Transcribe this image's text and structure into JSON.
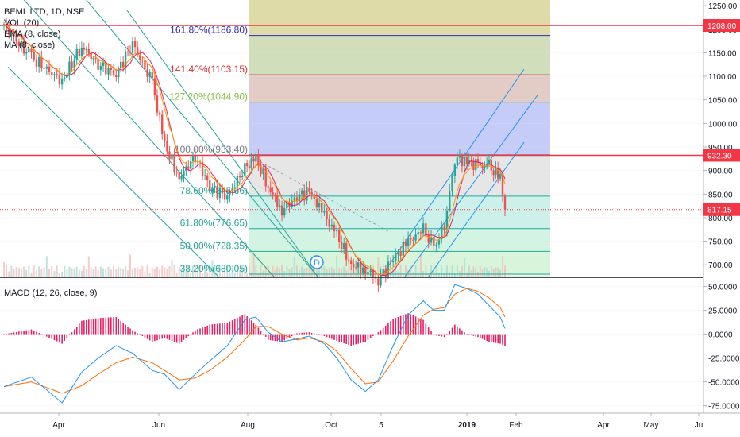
{
  "legend": {
    "symbol_line": "BEML LTD, 1D, NSE",
    "indicators": [
      "VOL (20)",
      "EMA (8, close)",
      "MA (8, close)"
    ]
  },
  "macd_legend": "MACD (12, 26, close, 9)",
  "colors": {
    "up": "#26a69a",
    "down": "#ef5350",
    "ema": "#ff9800",
    "ma": "#e91e63",
    "macd": "#2196f3",
    "signal": "#ff6d00",
    "hist_pos": "#e91e63",
    "channel": "#26a69a",
    "hline": "#f23645",
    "axis_text": "#131722",
    "grid": "#e1e3eb"
  },
  "price_axis": {
    "min": 675,
    "max": 1262,
    "ticks": [
      "1250.00",
      "1200.00",
      "1150.00",
      "1100.00",
      "1050.00",
      "1000.00",
      "950.00",
      "900.00",
      "850.00",
      "800.00",
      "750.00",
      "700.00"
    ],
    "badges": [
      {
        "label": "1208.00",
        "value": 1208,
        "color": "#f23645"
      },
      {
        "label": "932.30",
        "value": 932.3,
        "color": "#f23645"
      },
      {
        "label": "817.15",
        "value": 817.15,
        "color": "#f23645"
      }
    ]
  },
  "macd_axis": {
    "min": -82,
    "max": 58,
    "ticks": [
      "50.0000",
      "25.0000",
      "0.0000",
      "-25.0000",
      "-50.0000",
      "-75.0000"
    ]
  },
  "time_axis": {
    "labels": [
      "Apr",
      "Jun",
      "Aug",
      "Oct",
      "5",
      "2019",
      "Feb",
      "Apr",
      "May",
      "Ju"
    ]
  },
  "fibonacci": [
    {
      "label": "161.80%(1186.80)",
      "value": 1186.8,
      "color": "#2b2bb5"
    },
    {
      "label": "141.40%(1103.15)",
      "value": 1103.15,
      "color": "#d32f2f"
    },
    {
      "label": "127.20%(1044.90)",
      "value": 1044.9,
      "color": "#8bc34a"
    },
    {
      "label": "100.00%(933.40)",
      "value": 933.4,
      "color": "#787b86"
    },
    {
      "label": "78.60%(845.66)",
      "value": 845.66,
      "color": "#26a69a"
    },
    {
      "label": "61.80%(776.65)",
      "value": 776.65,
      "color": "#26a69a"
    },
    {
      "label": "50.00%(728.35)",
      "value": 728.35,
      "color": "#26a69a"
    },
    {
      "label": "38.20%(680.05)",
      "value": 680.05,
      "color": "#26a69a"
    }
  ],
  "horizontal_lines": [
    {
      "value": 1208.0,
      "color": "#f23645"
    },
    {
      "value": 932.3,
      "color": "#f23645"
    }
  ],
  "marker": {
    "label": "D"
  },
  "chart_data": [
    {
      "type": "line",
      "title": "BEML LTD, 1D, NSE",
      "x": [
        "2018-03-08",
        "2018-03-20",
        "2018-04-03",
        "2018-04-15",
        "2018-04-25",
        "2018-05-06",
        "2018-05-16",
        "2018-05-28",
        "2018-06-05",
        "2018-06-15",
        "2018-06-26",
        "2018-07-06",
        "2018-07-18",
        "2018-07-30",
        "2018-08-07",
        "2018-08-16",
        "2018-08-26",
        "2018-09-06",
        "2018-09-15",
        "2018-09-26",
        "2018-10-05",
        "2018-10-15",
        "2018-10-25",
        "2018-11-03",
        "2018-11-13",
        "2018-11-23",
        "2018-12-03",
        "2018-12-10",
        "2018-12-17",
        "2018-12-24",
        "2019-01-01",
        "2019-01-08",
        "2019-01-15",
        "2019-01-22",
        "2019-01-25"
      ],
      "series": [
        {
          "name": "close",
          "values": [
            1205,
            1140,
            1090,
            1165,
            1125,
            1105,
            1170,
            1085,
            955,
            885,
            930,
            865,
            845,
            905,
            925,
            865,
            815,
            845,
            855,
            805,
            762,
            700,
            690,
            668,
            712,
            748,
            775,
            736,
            780,
            925,
            920,
            910,
            908,
            885,
            817.15
          ]
        }
      ],
      "ylim": [
        675,
        1262
      ],
      "xlabel": "",
      "ylabel": ""
    },
    {
      "type": "line",
      "title": "MACD (12, 26, close, 9)",
      "x": [
        "2018-03-08",
        "2018-03-20",
        "2018-04-03",
        "2018-04-15",
        "2018-04-25",
        "2018-05-06",
        "2018-05-16",
        "2018-05-28",
        "2018-06-05",
        "2018-06-15",
        "2018-06-26",
        "2018-07-06",
        "2018-07-18",
        "2018-07-30",
        "2018-08-07",
        "2018-08-16",
        "2018-08-26",
        "2018-09-06",
        "2018-09-15",
        "2018-09-26",
        "2018-10-05",
        "2018-10-15",
        "2018-10-25",
        "2018-11-03",
        "2018-11-13",
        "2018-11-23",
        "2018-12-03",
        "2018-12-10",
        "2018-12-17",
        "2018-12-24",
        "2019-01-01",
        "2019-01-08",
        "2019-01-15",
        "2019-01-22",
        "2019-01-25"
      ],
      "series": [
        {
          "name": "MACD",
          "values": [
            -55,
            -45,
            -72,
            -40,
            -25,
            -12,
            -20,
            -38,
            -42,
            -58,
            -42,
            -28,
            -12,
            15,
            18,
            2,
            -8,
            -5,
            -2,
            -10,
            -25,
            -48,
            -60,
            -48,
            -12,
            20,
            35,
            25,
            25,
            52,
            48,
            42,
            30,
            18,
            6
          ]
        },
        {
          "name": "Signal",
          "values": [
            -55,
            -50,
            -62,
            -54,
            -42,
            -30,
            -24,
            -30,
            -38,
            -48,
            -46,
            -38,
            -24,
            -6,
            8,
            8,
            0,
            -6,
            -4,
            -8,
            -18,
            -36,
            -52,
            -50,
            -28,
            -2,
            20,
            26,
            28,
            42,
            48,
            45,
            38,
            28,
            18
          ]
        }
      ],
      "ylim": [
        -82,
        58
      ],
      "xlabel": "",
      "ylabel": ""
    }
  ]
}
